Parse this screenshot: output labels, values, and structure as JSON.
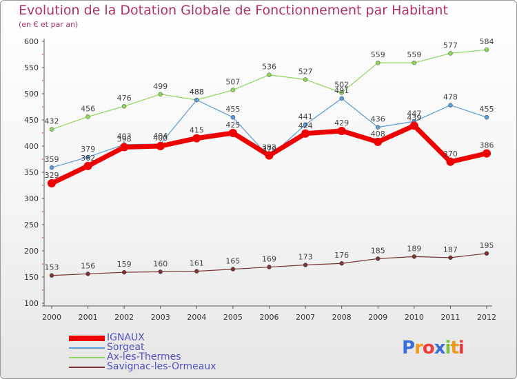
{
  "chart_data": {
    "type": "line",
    "title": "Evolution de la Dotation Globale de Fonctionnement par Habitant",
    "subtitle": "(en € et par an)",
    "xlabel": "",
    "ylabel": "",
    "ylim": [
      100,
      600
    ],
    "yticks": [
      100,
      150,
      200,
      250,
      300,
      350,
      400,
      450,
      500,
      550,
      600
    ],
    "grid": false,
    "legend_position": "bottom-left",
    "x": [
      "2000",
      "2001",
      "2002",
      "2003",
      "2004",
      "2005",
      "2006",
      "2007",
      "2008",
      "2009",
      "2010",
      "2011",
      "2012"
    ],
    "series": [
      {
        "name": "IGNAUX",
        "color": "#ee0000",
        "values": [
          329,
          362,
          398,
          400,
          415,
          425,
          382,
          424,
          429,
          408,
          439,
          370,
          386
        ]
      },
      {
        "name": "Sorgeat",
        "color": "#5a9ad6",
        "values": [
          359,
          379,
          403,
          404,
          488,
          455,
          379,
          441,
          491,
          436,
          447,
          478,
          455
        ]
      },
      {
        "name": "Ax-les-Thermes",
        "color": "#8ed65a",
        "values": [
          432,
          456,
          476,
          499,
          488,
          507,
          536,
          527,
          502,
          559,
          559,
          577,
          584
        ]
      },
      {
        "name": "Savignac-les-Ormeaux",
        "color": "#7a3535",
        "values": [
          153,
          156,
          159,
          160,
          161,
          165,
          169,
          173,
          176,
          185,
          189,
          187,
          195
        ]
      }
    ]
  },
  "logo": {
    "text": "Proxiti",
    "letters": [
      "P",
      "r",
      "o",
      "x",
      "i",
      "t",
      "i"
    ],
    "colors": [
      "#3a6fd8",
      "#f29a1c",
      "#ef3c3c",
      "#3a6fd8",
      "#7cc23c",
      "#f29a1c",
      "#ef3c3c"
    ]
  }
}
